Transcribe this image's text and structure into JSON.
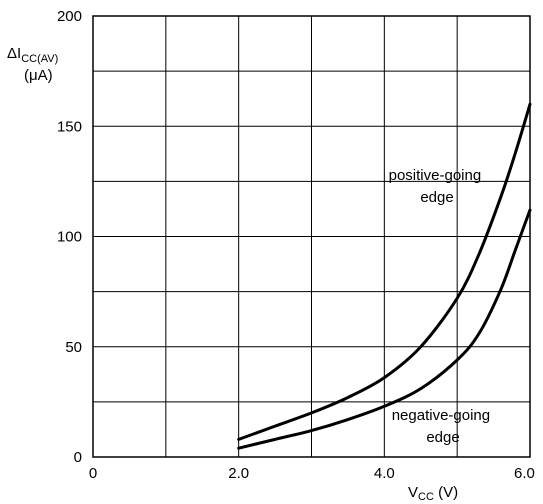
{
  "chart_data": {
    "type": "line",
    "title": "",
    "xlabel": {
      "main": "V",
      "sub": "CC",
      "unit": " (V)"
    },
    "ylabel": {
      "main": "ΔI",
      "sub": "CC(AV)",
      "unit": "(μA)"
    },
    "xlim": [
      0,
      6.0
    ],
    "ylim": [
      0,
      200
    ],
    "x_ticks": [
      "0",
      "2.0",
      "4.0",
      "6.0"
    ],
    "y_ticks": [
      "0",
      "50",
      "100",
      "150",
      "200"
    ],
    "grid": true,
    "series": [
      {
        "name": "positive-going edge",
        "label_lines": [
          "positive-going",
          "edge"
        ],
        "x": [
          2.0,
          2.5,
          3.0,
          3.5,
          4.0,
          4.5,
          5.0,
          5.3,
          5.6,
          5.8,
          6.0
        ],
        "y": [
          8,
          14,
          20,
          27,
          36,
          50,
          72,
          92,
          118,
          138,
          160
        ]
      },
      {
        "name": "negative-going edge",
        "label_lines": [
          "negative-going",
          "edge"
        ],
        "x": [
          2.0,
          2.5,
          3.0,
          3.5,
          4.0,
          4.5,
          5.0,
          5.3,
          5.6,
          5.8,
          6.0
        ],
        "y": [
          4,
          8,
          12,
          17,
          23,
          31,
          44,
          56,
          76,
          94,
          112
        ]
      }
    ]
  }
}
